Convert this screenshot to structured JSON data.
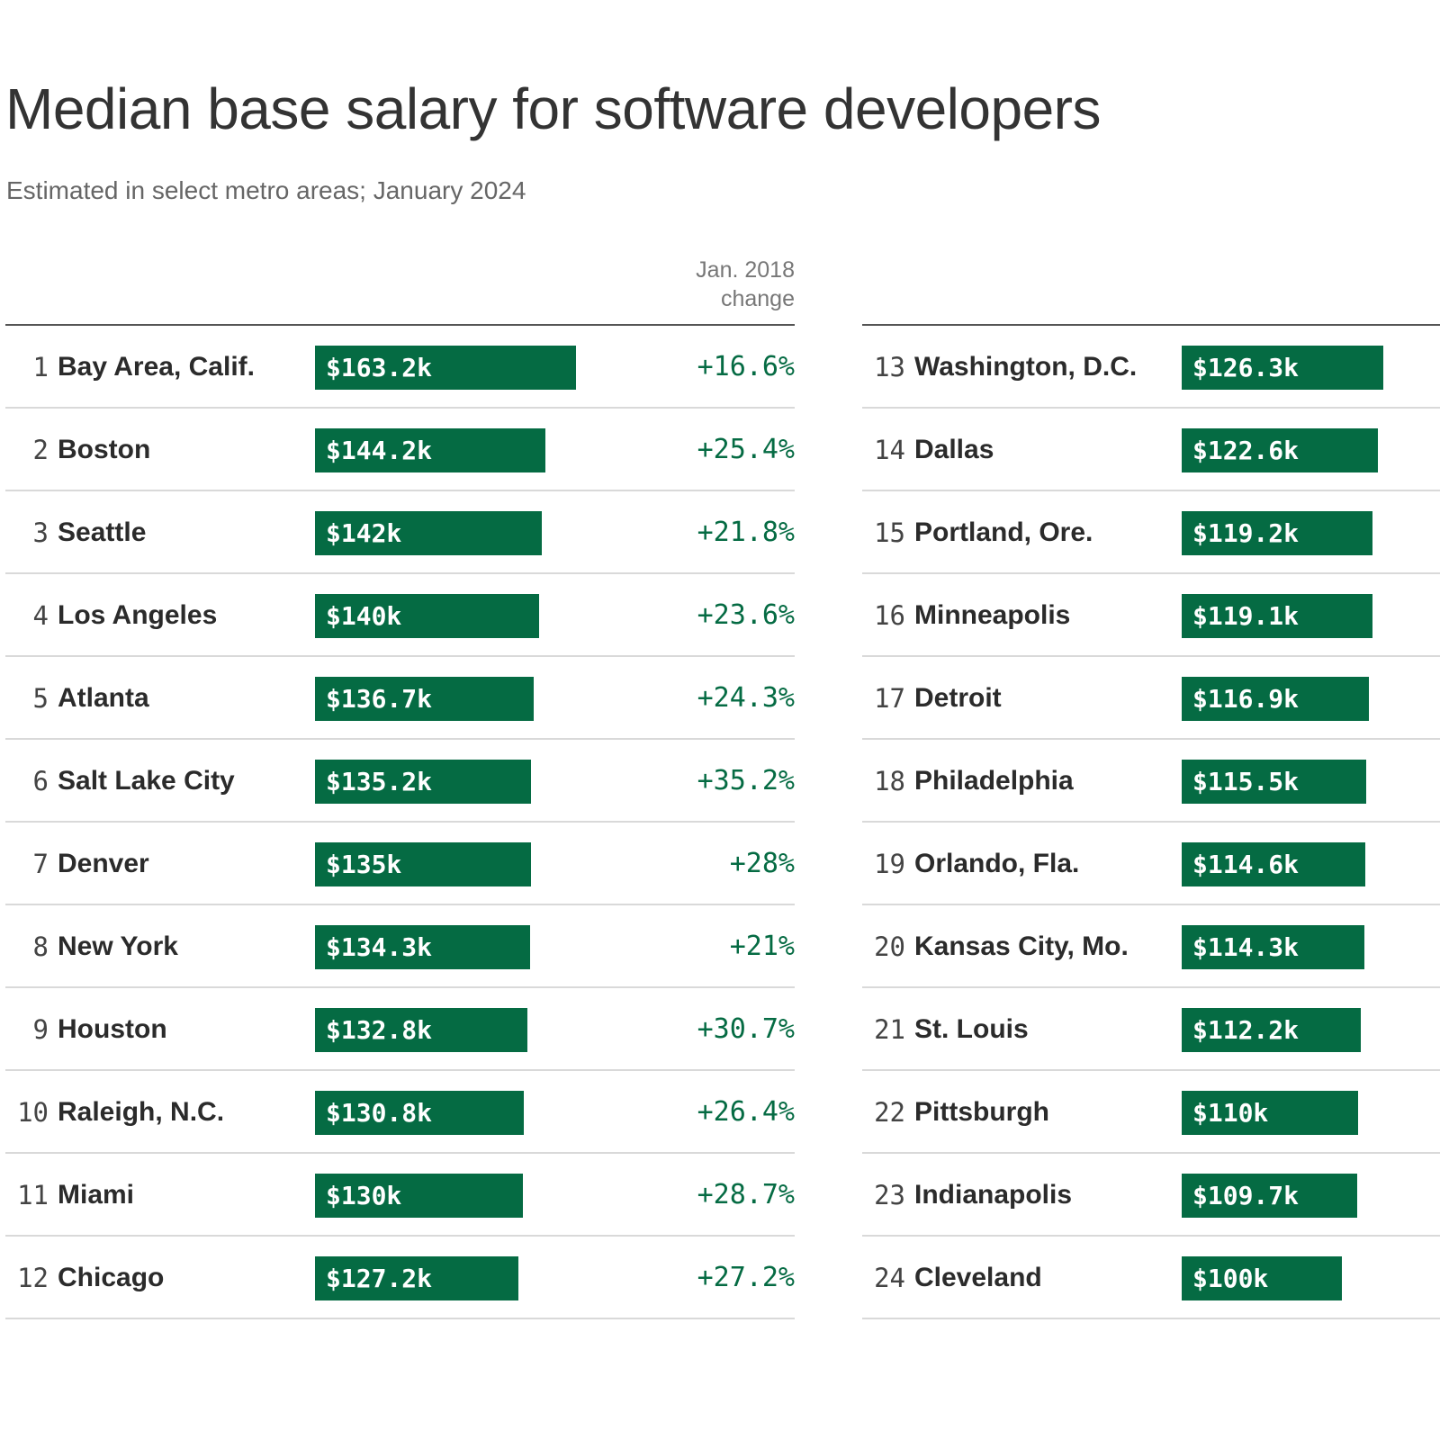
{
  "chart_data": {
    "type": "bar",
    "title": "Median base salary for software developers",
    "subtitle": "Estimated in select metro areas; January 2024",
    "change_column_header": "Jan. 2018 change",
    "change_header_lines": [
      "Jan. 2018",
      "change"
    ],
    "bar_color": "#056b43",
    "value_unit": "thousands of USD",
    "rows": [
      {
        "rank": "1",
        "metro": "Bay Area, Calif.",
        "value": 163.2,
        "label": "$163.2k",
        "change": "+16.6%"
      },
      {
        "rank": "2",
        "metro": "Boston",
        "value": 144.2,
        "label": "$144.2k",
        "change": "+25.4%"
      },
      {
        "rank": "3",
        "metro": "Seattle",
        "value": 142,
        "label": "$142k",
        "change": "+21.8%"
      },
      {
        "rank": "4",
        "metro": "Los Angeles",
        "value": 140,
        "label": "$140k",
        "change": "+23.6%"
      },
      {
        "rank": "5",
        "metro": "Atlanta",
        "value": 136.7,
        "label": "$136.7k",
        "change": "+24.3%"
      },
      {
        "rank": "6",
        "metro": "Salt Lake City",
        "value": 135.2,
        "label": "$135.2k",
        "change": "+35.2%"
      },
      {
        "rank": "7",
        "metro": "Denver",
        "value": 135,
        "label": "$135k",
        "change": "+28%"
      },
      {
        "rank": "8",
        "metro": "New York",
        "value": 134.3,
        "label": "$134.3k",
        "change": "+21%"
      },
      {
        "rank": "9",
        "metro": "Houston",
        "value": 132.8,
        "label": "$132.8k",
        "change": "+30.7%"
      },
      {
        "rank": "10",
        "metro": "Raleigh, N.C.",
        "value": 130.8,
        "label": "$130.8k",
        "change": "+26.4%"
      },
      {
        "rank": "11",
        "metro": "Miami",
        "value": 130,
        "label": "$130k",
        "change": "+28.7%"
      },
      {
        "rank": "12",
        "metro": "Chicago",
        "value": 127.2,
        "label": "$127.2k",
        "change": "+27.2%"
      },
      {
        "rank": "13",
        "metro": "Washington, D.C.",
        "value": 126.3,
        "label": "$126.3k",
        "change": ""
      },
      {
        "rank": "14",
        "metro": "Dallas",
        "value": 122.6,
        "label": "$122.6k",
        "change": ""
      },
      {
        "rank": "15",
        "metro": "Portland, Ore.",
        "value": 119.2,
        "label": "$119.2k",
        "change": ""
      },
      {
        "rank": "16",
        "metro": "Minneapolis",
        "value": 119.1,
        "label": "$119.1k",
        "change": ""
      },
      {
        "rank": "17",
        "metro": "Detroit",
        "value": 116.9,
        "label": "$116.9k",
        "change": ""
      },
      {
        "rank": "18",
        "metro": "Philadelphia",
        "value": 115.5,
        "label": "$115.5k",
        "change": ""
      },
      {
        "rank": "19",
        "metro": "Orlando, Fla.",
        "value": 114.6,
        "label": "$114.6k",
        "change": ""
      },
      {
        "rank": "20",
        "metro": "Kansas City, Mo.",
        "value": 114.3,
        "label": "$114.3k",
        "change": ""
      },
      {
        "rank": "21",
        "metro": "St. Louis",
        "value": 112.2,
        "label": "$112.2k",
        "change": ""
      },
      {
        "rank": "22",
        "metro": "Pittsburgh",
        "value": 110,
        "label": "$110k",
        "change": ""
      },
      {
        "rank": "23",
        "metro": "Indianapolis",
        "value": 109.7,
        "label": "$109.7k",
        "change": ""
      },
      {
        "rank": "24",
        "metro": "Cleveland",
        "value": 100,
        "label": "$100k",
        "change": ""
      }
    ]
  }
}
